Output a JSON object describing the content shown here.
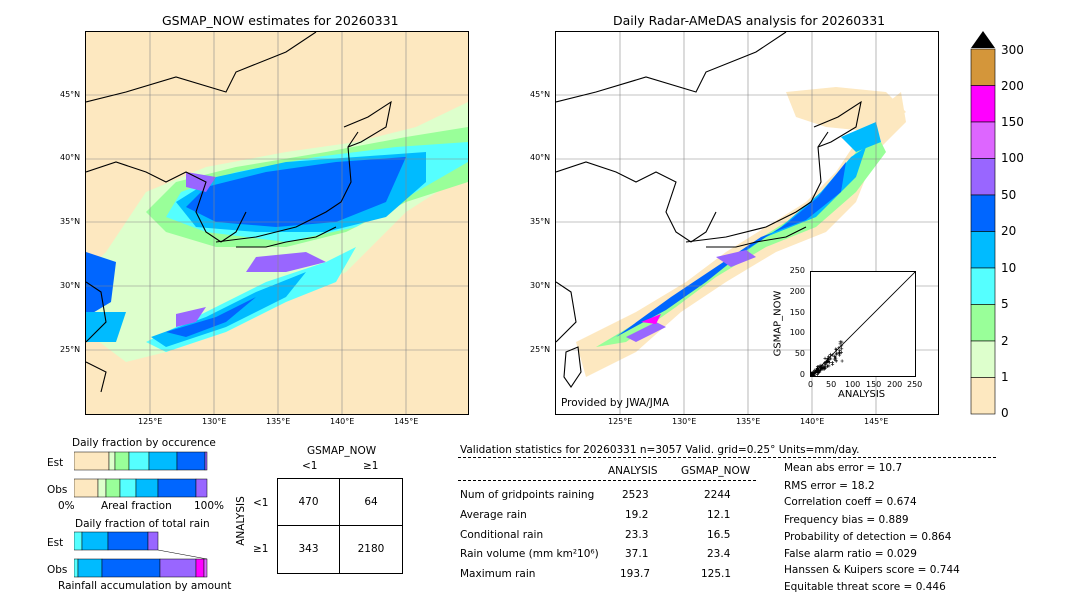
{
  "left_map": {
    "title": "GSMAP_NOW estimates for 20260331",
    "lat_labels": [
      "45°N",
      "40°N",
      "35°N",
      "30°N",
      "25°N"
    ],
    "lon_labels": [
      "125°E",
      "130°E",
      "135°E",
      "140°E",
      "145°E"
    ]
  },
  "right_map": {
    "title": "Daily Radar-AMeDAS analysis for 20260331",
    "lat_labels": [
      "45°N",
      "40°N",
      "35°N",
      "30°N",
      "25°N"
    ],
    "lon_labels": [
      "125°E",
      "130°E",
      "135°E",
      "140°E",
      "145°E"
    ],
    "credit": "Provided by JWA/JMA"
  },
  "colorbar": {
    "labels": [
      "300",
      "200",
      "150",
      "100",
      "50",
      "20",
      "10",
      "5",
      "2",
      "1",
      "0"
    ],
    "colors": [
      "#d4963a",
      "#ff00ff",
      "#dd66ff",
      "#9966ff",
      "#0066ff",
      "#00bbff",
      "#55ffff",
      "#99ff99",
      "#ddffcc",
      "#fde8c0"
    ]
  },
  "scatter": {
    "xlabel": "ANALYSIS",
    "ylabel": "GSMAP_NOW",
    "ticks": [
      "0",
      "50",
      "100",
      "150",
      "200",
      "250"
    ]
  },
  "fraction_occurrence": {
    "title": "Daily fraction by occurence",
    "rows": [
      "Est",
      "Obs"
    ],
    "axis_left": "0%",
    "axis_mid": "Areal fraction",
    "axis_right": "100%"
  },
  "fraction_total": {
    "title": "Daily fraction of total rain",
    "rows": [
      "Est",
      "Obs"
    ],
    "axis_label": "Rainfall accumulation by amount"
  },
  "contingency": {
    "title": "GSMAP_NOW",
    "col_lt": "<1",
    "col_ge": "≥1",
    "row_axis": "ANALYSIS",
    "row_lt": "<1",
    "row_ge": "≥1",
    "cells": [
      "470",
      "64",
      "343",
      "2180"
    ]
  },
  "validation": {
    "header": "Validation statistics for 20260331  n=3057 Valid. grid=0.25° Units=mm/day.",
    "col_analysis": "ANALYSIS",
    "col_gsmap": "GSMAP_NOW",
    "rows": [
      {
        "label": "Num of gridpoints raining",
        "analysis": "2523",
        "gsmap": "2244"
      },
      {
        "label": "Average rain",
        "analysis": "19.2",
        "gsmap": "12.1"
      },
      {
        "label": "Conditional rain",
        "analysis": "23.3",
        "gsmap": "16.5"
      },
      {
        "label": "Rain volume (mm km²10⁶)",
        "analysis": "37.1",
        "gsmap": "23.4"
      },
      {
        "label": "Maximum rain",
        "analysis": "193.7",
        "gsmap": "125.1"
      }
    ],
    "scores": [
      "Mean abs error =   10.7",
      "RMS error =   18.2",
      "Correlation coeff =  0.674",
      "Frequency bias =  0.889",
      "Probability of detection =  0.864",
      "False alarm ratio =  0.029",
      "Hanssen & Kuipers score =  0.744",
      "Equitable threat score =  0.446"
    ]
  },
  "chart_data": {
    "type": "table",
    "title": "Validation statistics for 20260331",
    "contingency_table": {
      "rows": [
        "<1",
        "≥1"
      ],
      "cols": [
        "<1",
        "≥1"
      ],
      "values": [
        [
          470,
          64
        ],
        [
          343,
          2180
        ]
      ]
    },
    "stats": {
      "n": 3057,
      "num_gridpoints_raining": [
        2523,
        2244
      ],
      "average_rain": [
        19.2,
        12.1
      ],
      "conditional_rain": [
        23.3,
        16.5
      ],
      "rain_volume": [
        37.1,
        23.4
      ],
      "maximum_rain": [
        193.7,
        125.1
      ],
      "mean_abs_error": 10.7,
      "rms_error": 18.2,
      "correlation_coeff": 0.674,
      "frequency_bias": 0.889,
      "probability_of_detection": 0.864,
      "false_alarm_ratio": 0.029,
      "hanssen_kuipers_score": 0.744,
      "equitable_threat_score": 0.446
    },
    "colorbar_levels": [
      0,
      1,
      2,
      5,
      10,
      20,
      50,
      100,
      150,
      200,
      300
    ]
  }
}
